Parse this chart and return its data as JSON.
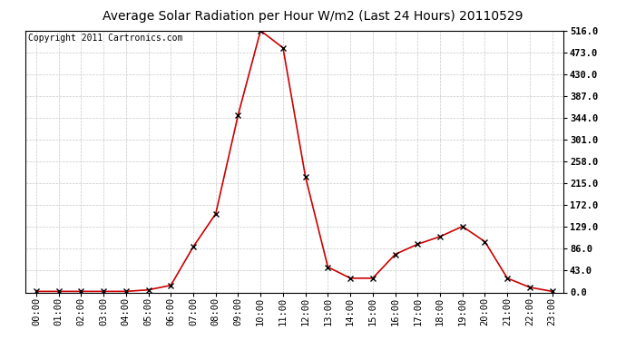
{
  "title": "Average Solar Radiation per Hour W/m2 (Last 24 Hours) 20110529",
  "copyright": "Copyright 2011 Cartronics.com",
  "x_labels": [
    "00:00",
    "01:00",
    "02:00",
    "03:00",
    "04:00",
    "05:00",
    "06:00",
    "07:00",
    "08:00",
    "09:00",
    "10:00",
    "11:00",
    "12:00",
    "13:00",
    "14:00",
    "15:00",
    "16:00",
    "17:00",
    "18:00",
    "19:00",
    "20:00",
    "21:00",
    "22:00",
    "23:00"
  ],
  "y_values": [
    2,
    2,
    2,
    2,
    2,
    5,
    14,
    90,
    155,
    350,
    516,
    482,
    228,
    50,
    28,
    28,
    75,
    95,
    110,
    130,
    100,
    28,
    10,
    2
  ],
  "y_ticks": [
    0.0,
    43.0,
    86.0,
    129.0,
    172.0,
    215.0,
    258.0,
    301.0,
    344.0,
    387.0,
    430.0,
    473.0,
    516.0
  ],
  "ylim": [
    0,
    516
  ],
  "line_color": "#cc0000",
  "marker": "x",
  "marker_color": "#000000",
  "marker_size": 4,
  "background_color": "#ffffff",
  "grid_color": "#c8c8c8",
  "title_fontsize": 10,
  "copyright_fontsize": 7,
  "tick_fontsize": 7.5,
  "ytick_fontsize": 7.5
}
